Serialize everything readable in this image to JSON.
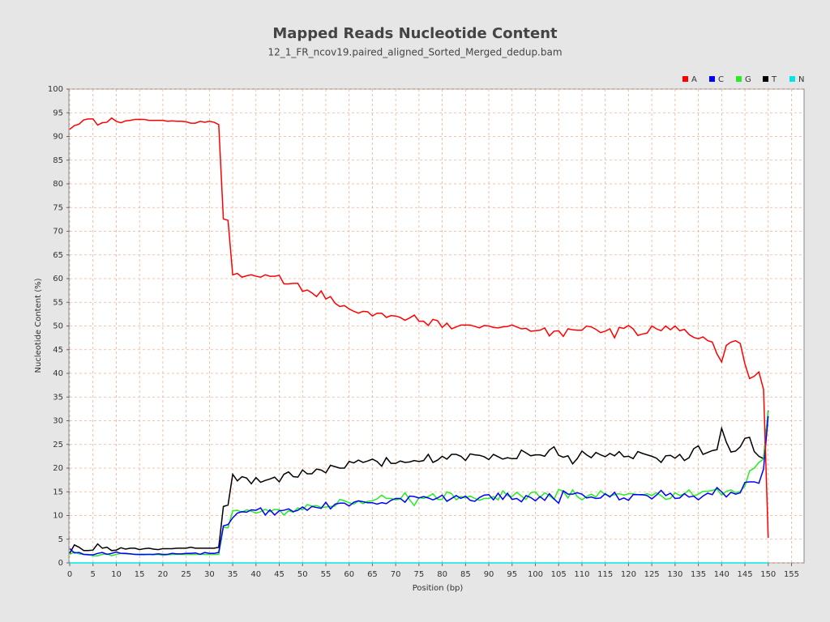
{
  "chart_data": {
    "type": "line",
    "title": "Mapped Reads Nucleotide Content",
    "subtitle": "12_1_FR_ncov19.paired_aligned_Sorted_Merged_dedup.bam",
    "x_label": "Position (bp)",
    "y_label": "Nucleotide Content (%)",
    "x": [
      0,
      1,
      2,
      3,
      4,
      5,
      6,
      7,
      8,
      9,
      10,
      11,
      12,
      13,
      14,
      15,
      16,
      17,
      18,
      19,
      20,
      21,
      22,
      23,
      24,
      25,
      26,
      27,
      28,
      29,
      30,
      31,
      32,
      33,
      34,
      35,
      36,
      37,
      38,
      39,
      40,
      41,
      42,
      43,
      44,
      45,
      46,
      47,
      48,
      49,
      50,
      51,
      52,
      53,
      54,
      55,
      56,
      57,
      58,
      59,
      60,
      61,
      62,
      63,
      64,
      65,
      66,
      67,
      68,
      69,
      70,
      71,
      72,
      73,
      74,
      75,
      76,
      77,
      78,
      79,
      80,
      81,
      82,
      83,
      84,
      85,
      86,
      87,
      88,
      89,
      90,
      91,
      92,
      93,
      94,
      95,
      96,
      97,
      98,
      99,
      100,
      101,
      102,
      103,
      104,
      105,
      106,
      107,
      108,
      109,
      110,
      111,
      112,
      113,
      114,
      115,
      116,
      117,
      118,
      119,
      120,
      121,
      122,
      123,
      124,
      125,
      126,
      127,
      128,
      129,
      130,
      131,
      132,
      133,
      134,
      135,
      136,
      137,
      138,
      139,
      140,
      141,
      142,
      143,
      144,
      145,
      146,
      147,
      148,
      149,
      150
    ],
    "series": [
      {
        "name": "A",
        "color": "#ff0000",
        "values": [
          91.5,
          92.3,
          92.6,
          93.5,
          93.7,
          93.7,
          92.4,
          92.9,
          93,
          93.9,
          93.2,
          92.9,
          93.3,
          93.4,
          93.6,
          93.6,
          93.6,
          93.4,
          93.4,
          93.4,
          93.4,
          93.2,
          93.3,
          93.2,
          93.2,
          93.1,
          92.8,
          92.8,
          93.2,
          93,
          93.2,
          93,
          92.5,
          72.6,
          72.3,
          60.8,
          61.1,
          60.3,
          60.6,
          60.8,
          60.5,
          60.3,
          60.8,
          60.5,
          60.5,
          60.7,
          58.9,
          58.9,
          59,
          59,
          57.3,
          57.6,
          57,
          56.2,
          57.4,
          55.7,
          56.2,
          54.8,
          54.1,
          54.3,
          53.6,
          53.1,
          52.7,
          53.1,
          53,
          52.1,
          52.7,
          52.7,
          51.8,
          52.2,
          52.1,
          51.8,
          51.2,
          51.7,
          52.3,
          51,
          51,
          50.1,
          51.4,
          51.1,
          49.7,
          50.6,
          49.4,
          49.8,
          50.2,
          50.2,
          50.2,
          49.9,
          49.6,
          50.1,
          50,
          49.7,
          49.6,
          49.8,
          49.9,
          50.2,
          49.8,
          49.4,
          49.5,
          48.9,
          49,
          49.1,
          49.6,
          47.9,
          48.9,
          49,
          47.8,
          49.4,
          49.2,
          49.1,
          49.1,
          50,
          49.8,
          49.3,
          48.6,
          48.9,
          49.4,
          47.5,
          49.7,
          49.5,
          50.1,
          49.4,
          48,
          48.3,
          48.5,
          50,
          49.4,
          49,
          50,
          49.2,
          50,
          49,
          49.3,
          48.2,
          47.6,
          47.3,
          47.7,
          46.9,
          46.6,
          44.1,
          42.4,
          45.9,
          46.6,
          46.9,
          46.3,
          42,
          38.9,
          39.4,
          40.3,
          36.6,
          5.3
        ]
      },
      {
        "name": "C",
        "color": "#0000ff",
        "values": [
          3,
          2.1,
          2.2,
          1.8,
          1.7,
          1.7,
          2,
          2.2,
          1.8,
          2,
          2.3,
          2,
          2,
          1.9,
          1.8,
          1.8,
          1.8,
          1.8,
          1.8,
          1.9,
          1.8,
          1.8,
          2,
          1.9,
          1.9,
          2,
          2,
          2.1,
          1.8,
          2.2,
          2,
          2,
          2.2,
          7.8,
          8.1,
          9.5,
          10.5,
          10.8,
          10.7,
          11.2,
          11.1,
          11.6,
          10.1,
          11.2,
          10.1,
          11,
          11.1,
          11.4,
          10.8,
          11.1,
          11.8,
          11.1,
          11.9,
          11.7,
          11.5,
          12.8,
          11.4,
          12.4,
          12.6,
          12.6,
          12,
          12.8,
          13.1,
          12.9,
          12.7,
          12.7,
          12.4,
          12.7,
          12.5,
          13.2,
          13.6,
          13.6,
          12.8,
          14.1,
          14,
          13.7,
          14,
          13.7,
          13.3,
          13.7,
          14.3,
          13,
          13.6,
          14.2,
          13.6,
          14.1,
          13.2,
          13,
          13.8,
          14.3,
          14.4,
          13.3,
          14.7,
          13.4,
          14.7,
          13.4,
          13.6,
          12.9,
          14.2,
          13.8,
          13.1,
          14,
          13.2,
          14.6,
          13.5,
          12.6,
          15.2,
          14.5,
          14.5,
          14.8,
          14.5,
          13.7,
          13.9,
          13.6,
          13.7,
          14.6,
          13.9,
          14.9,
          13.3,
          13.7,
          13.2,
          14.4,
          14.4,
          14.4,
          14.2,
          13.5,
          14.3,
          15.3,
          14.2,
          14.7,
          13.6,
          13.7,
          14.6,
          13.9,
          14.1,
          13.3,
          14.1,
          14.7,
          14.4,
          15.9,
          15,
          13.9,
          14.9,
          14.5,
          14.8,
          17,
          17.1,
          17.1,
          16.8,
          19.8,
          31
        ]
      },
      {
        "name": "G",
        "color": "#22ee22",
        "values": [
          1.8,
          2.3,
          1.9,
          1.8,
          1.8,
          1.5,
          1.5,
          1.8,
          1.9,
          1.5,
          1.8,
          2,
          1.9,
          1.9,
          1.8,
          1.7,
          1.7,
          1.8,
          1.7,
          1.8,
          1.6,
          1.7,
          1.8,
          1.8,
          1.8,
          1.8,
          1.8,
          1.8,
          1.8,
          1.8,
          1.8,
          1.8,
          1.8,
          7.5,
          7.4,
          11,
          11.1,
          10.7,
          11.2,
          10.9,
          10.5,
          10.8,
          11.3,
          10.8,
          11.3,
          11.2,
          10.1,
          11,
          10.7,
          11.6,
          11.2,
          12.3,
          12,
          12.1,
          11.7,
          11.8,
          11.9,
          12,
          13.4,
          13.1,
          12.7,
          12.4,
          13.1,
          12.5,
          13,
          13.1,
          13.5,
          14.3,
          13.6,
          13.6,
          13.3,
          13.5,
          14.8,
          13.3,
          12.1,
          13.8,
          13.6,
          14,
          14.6,
          13.4,
          13.4,
          15,
          14.6,
          13.3,
          14,
          13.7,
          14.1,
          13.6,
          13.2,
          13.6,
          13.6,
          14,
          13.3,
          15.2,
          14.2,
          14,
          14.9,
          14.1,
          13.4,
          14.8,
          15,
          13.8,
          14.8,
          14.2,
          13.4,
          15.5,
          15.1,
          13.7,
          15.4,
          14,
          13.3,
          14,
          14.5,
          13.9,
          15.2,
          14.4,
          14.1,
          14.4,
          14.6,
          14.3,
          14.6,
          14.6,
          14.4,
          14.3,
          14.6,
          14.2,
          14.8,
          14.2,
          13.4,
          13.6,
          14.8,
          14.2,
          14.6,
          15.4,
          14.1,
          14.5,
          15.1,
          15.1,
          15.3,
          15.6,
          14.3,
          15.1,
          15.4,
          14.8,
          15.1,
          16.2,
          19.4,
          20,
          21.2,
          21.9,
          32
        ]
      },
      {
        "name": "T",
        "color": "#000000",
        "values": [
          2,
          3.8,
          3.3,
          2.6,
          2.6,
          2.7,
          4,
          3.1,
          3.3,
          2.6,
          2.7,
          3.2,
          2.9,
          3.1,
          3.1,
          2.8,
          3,
          3.1,
          2.9,
          2.8,
          3,
          3,
          3,
          3.1,
          3.1,
          3.1,
          3.3,
          3.1,
          3.1,
          3.1,
          3.1,
          3.1,
          3.3,
          11.9,
          12.2,
          18.7,
          17.3,
          18.2,
          17.9,
          16.7,
          18,
          17,
          17.4,
          17.7,
          18.1,
          17.1,
          18.7,
          19.2,
          18.2,
          18.1,
          19.6,
          18.8,
          18.8,
          19.8,
          19.6,
          19,
          20.6,
          20.3,
          20,
          20,
          21.4,
          21.1,
          21.7,
          21.2,
          21.5,
          21.9,
          21.4,
          20.4,
          22.2,
          21,
          21,
          21.5,
          21.2,
          21.3,
          21.6,
          21.4,
          21.6,
          22.9,
          21.2,
          21.7,
          22.5,
          21.9,
          22.9,
          22.9,
          22.5,
          21.6,
          23,
          22.8,
          22.7,
          22.4,
          21.8,
          22.9,
          22.4,
          21.9,
          22.2,
          22,
          22,
          23.8,
          23.2,
          22.6,
          22.8,
          22.8,
          22.5,
          23.8,
          24.5,
          22.7,
          22.3,
          22.6,
          20.9,
          22,
          23.6,
          22.8,
          22.2,
          23.3,
          22.8,
          22.4,
          23.1,
          22.6,
          23.5,
          22.4,
          22.5,
          22,
          23.5,
          23.1,
          22.8,
          22.5,
          22.1,
          21.2,
          22.6,
          22.7,
          22.1,
          22.9,
          21.6,
          22.2,
          24.1,
          24.7,
          22.9,
          23.3,
          23.7,
          23.9,
          28.4,
          25.5,
          23.4,
          23.6,
          24.5,
          26.3,
          26.5,
          23.5,
          22.5,
          22,
          32.1
        ]
      },
      {
        "name": "N",
        "color": "#00e5e5",
        "values": [
          0,
          0,
          0,
          0,
          0,
          0,
          0,
          0,
          0,
          0,
          0,
          0,
          0,
          0,
          0,
          0,
          0,
          0,
          0,
          0,
          0,
          0,
          0,
          0,
          0,
          0,
          0,
          0,
          0,
          0,
          0,
          0,
          0,
          0,
          0,
          0,
          0,
          0,
          0,
          0,
          0,
          0,
          0,
          0,
          0,
          0,
          0,
          0,
          0,
          0,
          0,
          0,
          0,
          0,
          0,
          0,
          0,
          0,
          0,
          0,
          0,
          0,
          0,
          0,
          0,
          0,
          0,
          0,
          0,
          0,
          0,
          0,
          0,
          0,
          0,
          0,
          0,
          0,
          0,
          0,
          0,
          0,
          0,
          0,
          0,
          0,
          0,
          0,
          0,
          0,
          0,
          0,
          0,
          0,
          0,
          0,
          0,
          0,
          0,
          0,
          0,
          0,
          0,
          0,
          0,
          0,
          0,
          0,
          0,
          0,
          0,
          0,
          0,
          0,
          0,
          0,
          0,
          0,
          0,
          0,
          0,
          0,
          0,
          0,
          0,
          0,
          0,
          0,
          0,
          0,
          0,
          0,
          0,
          0,
          0,
          0,
          0,
          0,
          0,
          0,
          0,
          0,
          0,
          0,
          0,
          0,
          0,
          0,
          0,
          0,
          0
        ]
      }
    ],
    "xlim": [
      0,
      157.7
    ],
    "xticks": [
      0,
      5,
      10,
      15,
      20,
      25,
      30,
      35,
      40,
      45,
      50,
      55,
      60,
      65,
      70,
      75,
      80,
      85,
      90,
      95,
      100,
      105,
      110,
      115,
      120,
      125,
      130,
      135,
      140,
      145,
      150,
      155
    ],
    "ylim": [
      0,
      100
    ],
    "yticks": [
      0,
      5,
      10,
      15,
      20,
      25,
      30,
      35,
      40,
      45,
      50,
      55,
      60,
      65,
      70,
      75,
      80,
      85,
      90,
      95,
      100
    ],
    "grid": true,
    "legend": "top-right"
  }
}
